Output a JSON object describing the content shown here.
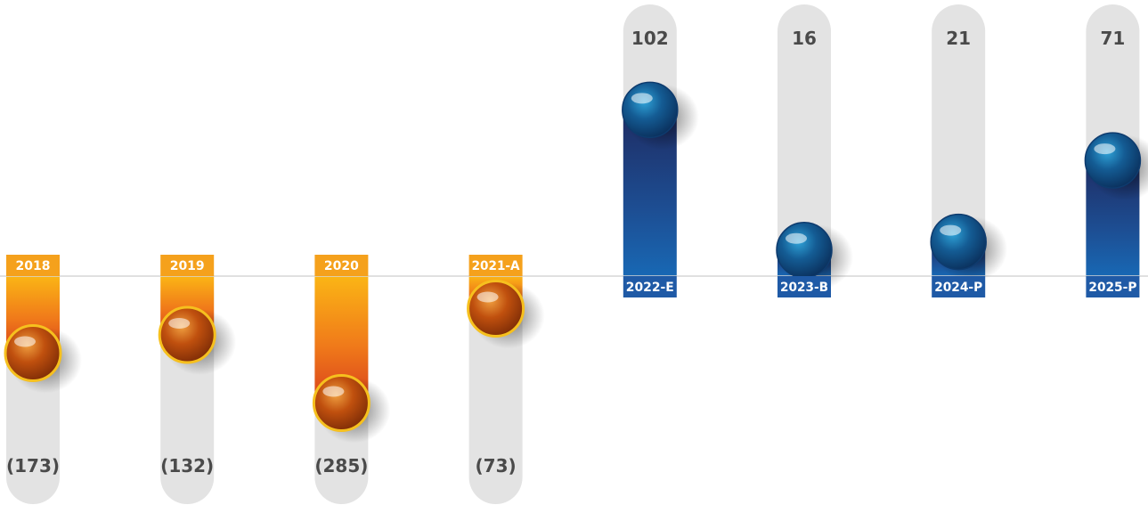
{
  "chart_data": {
    "type": "bar",
    "title": "",
    "xlabel": "",
    "ylabel": "",
    "categories": [
      "2018",
      "2019",
      "2020",
      "2021-A",
      "2022-E",
      "2023-B",
      "2024-P",
      "2025-P"
    ],
    "values": [
      -173,
      -132,
      -285,
      -73,
      102,
      16,
      21,
      71
    ],
    "value_labels": [
      "(173)",
      "(132)",
      "(285)",
      "(73)",
      "102",
      "16",
      "21",
      "71"
    ],
    "colors": {
      "negative": "#F5A11C",
      "positive": "#1F5AA6",
      "track": "#E3E3E3",
      "axis": "#D6D6D6"
    },
    "grid": false,
    "legend": "none"
  }
}
